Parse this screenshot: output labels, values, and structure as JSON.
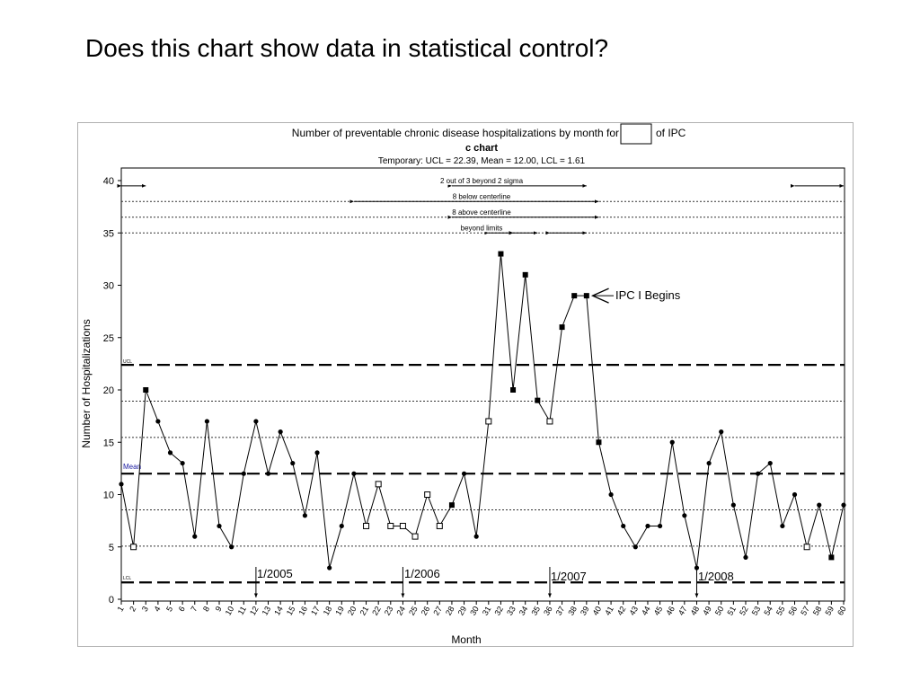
{
  "slide": {
    "title": "Does this chart show data in statistical control?"
  },
  "chart_data": {
    "type": "line",
    "title_before": "Number of preventable chronic disease hospitalizations by month for",
    "title_after": "of IPC",
    "subtitle": "c chart",
    "limits_text": "Temporary: UCL = 22.39, Mean = 12.00, LCL = 1.61",
    "xlabel": "Month",
    "ylabel": "Number of Hospitalizations",
    "ylim": [
      0,
      40
    ],
    "y_ticks": [
      0,
      5,
      10,
      15,
      20,
      25,
      30,
      35,
      40
    ],
    "x_range": [
      1,
      60
    ],
    "grid": false,
    "control_limits": {
      "ucl": 22.39,
      "mean": 12.0,
      "lcl": 1.61,
      "ucl_label": "UCL",
      "mean_label": "Mean",
      "lcl_label": "LCL"
    },
    "sigma_lines": [
      38.0,
      36.5,
      35.0,
      18.93,
      15.46,
      8.54,
      5.07
    ],
    "series": [
      {
        "x": [
          1,
          2,
          3,
          4,
          5,
          6,
          7,
          8,
          9,
          10,
          11,
          12,
          13,
          14,
          15,
          16,
          17,
          18,
          19,
          20,
          21,
          22,
          23,
          24,
          25,
          26,
          27,
          28,
          29,
          30,
          31,
          32,
          33,
          34,
          35,
          36,
          37,
          38,
          39,
          40,
          41,
          42,
          43,
          44,
          45,
          46,
          47,
          48,
          49,
          50,
          51,
          52,
          53,
          54,
          55,
          56,
          57,
          58,
          59,
          60
        ],
        "values": [
          11,
          5,
          20,
          17,
          14,
          13,
          6,
          17,
          7,
          5,
          12,
          17,
          12,
          16,
          13,
          8,
          14,
          3,
          7,
          12,
          7,
          11,
          7,
          7,
          6,
          10,
          7,
          9,
          12,
          6,
          17,
          33,
          20,
          31,
          19,
          17,
          26,
          29,
          29,
          15,
          10,
          7,
          5,
          7,
          7,
          15,
          8,
          3,
          13,
          16,
          9,
          4,
          12,
          13,
          7,
          10,
          5,
          9,
          4,
          9
        ],
        "markers": [
          "dot",
          "open",
          "filled",
          "dot",
          "dot",
          "dot",
          "dot",
          "dot",
          "dot",
          "dot",
          "dot",
          "dot",
          "dot",
          "dot",
          "dot",
          "dot",
          "dot",
          "dot",
          "dot",
          "dot",
          "open",
          "open",
          "open",
          "open",
          "open",
          "open",
          "open",
          "filled",
          "dot",
          "dot",
          "open",
          "filled",
          "filled",
          "filled",
          "filled",
          "open",
          "filled",
          "filled",
          "filled",
          "filled",
          "dot",
          "dot",
          "dot",
          "dot",
          "dot",
          "dot",
          "dot",
          "dot",
          "dot",
          "dot",
          "dot",
          "dot",
          "dot",
          "dot",
          "dot",
          "dot",
          "open",
          "dot",
          "filled",
          "dot"
        ]
      }
    ],
    "rule_annotations": [
      {
        "label": "2 out of 3 beyond 2 sigma",
        "y": 39.5,
        "ranges": [
          [
            1,
            3
          ],
          [
            28,
            39
          ],
          [
            56,
            60
          ]
        ]
      },
      {
        "label": "8 below centerline",
        "y": 38.0,
        "ranges": [
          [
            20,
            40
          ]
        ]
      },
      {
        "label": "8 above centerline",
        "y": 36.5,
        "ranges": [
          [
            28,
            40
          ]
        ]
      },
      {
        "label": "beyond limits",
        "y": 35.0,
        "ranges": [
          [
            31,
            33
          ],
          [
            33,
            35
          ],
          [
            36,
            39
          ]
        ]
      }
    ],
    "annotations": [
      {
        "text": "IPC I Begins",
        "x": 39,
        "y": 29
      },
      {
        "text": "1/2005",
        "x": 12
      },
      {
        "text": "1/2006",
        "x": 24
      },
      {
        "text": "1/2007",
        "x": 36
      },
      {
        "text": "1/2008",
        "x": 48
      }
    ]
  }
}
